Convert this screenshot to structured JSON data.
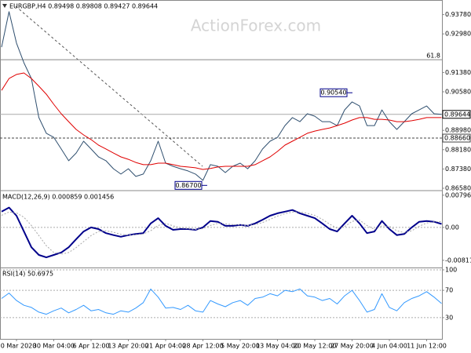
{
  "chart_data": [
    {
      "type": "line",
      "title": "EURGBP,H4 0.89498 0.89808 0.89427 0.89644",
      "watermark": "ActionForex.com",
      "categories": [
        null,
        null,
        "20 Mar 2020",
        null,
        null,
        null,
        null,
        "30 Mar 04:00",
        null,
        null,
        null,
        null,
        "6 Apr 12:00",
        null,
        null,
        null,
        null,
        "13 Apr 20:00",
        null,
        null,
        null,
        null,
        "21 Apr 04:00",
        null,
        null,
        null,
        null,
        "28 Apr 12:00",
        null,
        null,
        null,
        null,
        "5 May 20:00",
        null,
        null,
        null,
        null,
        "13 May 04:00",
        null,
        null,
        null,
        null,
        "20 May 12:00",
        null,
        null,
        null,
        null,
        "27 May 20:00",
        null,
        null,
        null,
        null,
        "4 Jun 04:00",
        null,
        null,
        null,
        null,
        "11 Jun 12:00",
        null,
        null
      ],
      "series": [
        {
          "color": "#2f4f6f",
          "style": "solid",
          "values": [
            0.9243,
            0.939,
            0.926,
            0.9178,
            0.9113,
            0.8951,
            0.8886,
            0.8869,
            0.8821,
            0.8772,
            0.8804,
            0.8853,
            0.8821,
            0.8788,
            0.8772,
            0.8739,
            0.8717,
            0.8739,
            0.8707,
            0.8717,
            0.8772,
            0.8853,
            0.8762,
            0.8749,
            0.8739,
            0.873,
            0.8717,
            0.8691,
            0.8756,
            0.8749,
            0.8723,
            0.8749,
            0.8762,
            0.8739,
            0.8772,
            0.8821,
            0.8853,
            0.8869,
            0.8918,
            0.8951,
            0.8934,
            0.8967,
            0.8957,
            0.8934,
            0.8934,
            0.8918,
            0.8983,
            0.9016,
            0.8999,
            0.8918,
            0.8918,
            0.8983,
            0.8934,
            0.8902,
            0.8934,
            0.8967,
            0.8983,
            0.8999,
            0.8967,
            0.89644
          ]
        },
        {
          "color": "#e00000",
          "style": "solid",
          "values": [
            0.9064,
            0.9113,
            0.913,
            0.9136,
            0.9113,
            0.9081,
            0.9048,
            0.9006,
            0.8967,
            0.8934,
            0.8902,
            0.8879,
            0.886,
            0.8837,
            0.8821,
            0.8804,
            0.8788,
            0.8778,
            0.8765,
            0.8756,
            0.8756,
            0.8762,
            0.8762,
            0.8756,
            0.8749,
            0.8746,
            0.8743,
            0.8736,
            0.874,
            0.8746,
            0.8749,
            0.8749,
            0.8749,
            0.8749,
            0.8756,
            0.8772,
            0.8788,
            0.8811,
            0.8837,
            0.8853,
            0.8869,
            0.8886,
            0.8895,
            0.8902,
            0.8908,
            0.8918,
            0.8928,
            0.8941,
            0.8951,
            0.8951,
            0.8944,
            0.8944,
            0.8941,
            0.8934,
            0.8934,
            0.8938,
            0.8944,
            0.8951,
            0.8951,
            0.8951
          ]
        }
      ],
      "ylim": [
        0.86515,
        0.9432
      ],
      "yticks": [
        {
          "value": 0.9378,
          "label": "0.93780"
        },
        {
          "value": 0.9298,
          "label": "0.92980"
        },
        {
          "value": 0.9138,
          "label": "0.91380"
        },
        {
          "value": 0.9058,
          "label": "0.90580"
        },
        {
          "value": 0.8898,
          "label": "0.88980"
        },
        {
          "value": 0.8818,
          "label": "0.88180"
        },
        {
          "value": 0.8738,
          "label": "0.87380"
        },
        {
          "value": 0.8658,
          "label": "0.86580"
        }
      ],
      "grid": false,
      "fib_level": {
        "name": "61.8",
        "value": 0.9191
      },
      "support_level": {
        "value": 0.8866,
        "label": "0.88660"
      },
      "last_price": 0.89644,
      "annotations": [
        {
          "value": 0.9054,
          "label": "0.90540"
        },
        {
          "value": 0.867,
          "label": "0.86700"
        }
      ]
    },
    {
      "type": "line",
      "title": "MACD(12,26,9) 0.000859 0.001456",
      "series": [
        {
          "color": "#00008b",
          "style": "thick",
          "values": [
            0.0039,
            0.0049,
            0.0029,
            -0.001,
            -0.0049,
            -0.0068,
            -0.0074,
            -0.0068,
            -0.0062,
            -0.0049,
            -0.0029,
            -0.001,
            0,
            -0.0004,
            -0.0014,
            -0.0019,
            -0.0023,
            -0.0019,
            -0.0016,
            -0.0014,
            0.001,
            0.0023,
            0.0004,
            -0.0006,
            -0.0004,
            -0.0004,
            -0.0006,
            0,
            0.0016,
            0.0014,
            0.0004,
            0.0004,
            0.0006,
            0.0004,
            0.001,
            0.0019,
            0.0029,
            0.0035,
            0.0039,
            0.0043,
            0.0035,
            0.0029,
            0.0023,
            0.001,
            -0.0004,
            -0.001,
            0.001,
            0.0029,
            0.001,
            -0.0014,
            -0.001,
            0.0016,
            -0.0004,
            -0.0019,
            -0.0016,
            0,
            0.0014,
            0.0016,
            0.0014,
            0.000859
          ]
        },
        {
          "color": "#a8a8a8",
          "style": "dotted",
          "values": [
            0.003,
            0.0038,
            0.0036,
            0.0025,
            0.0005,
            -0.002,
            -0.0045,
            -0.0062,
            -0.0066,
            -0.0062,
            -0.005,
            -0.0035,
            -0.002,
            -0.001,
            -0.0008,
            -0.0012,
            -0.0017,
            -0.0019,
            -0.0018,
            -0.0016,
            -0.0008,
            0.0005,
            0.001,
            0.0004,
            -0.0001,
            -0.0003,
            -0.0005,
            -0.0003,
            0.0005,
            0.001,
            0.0009,
            0.0007,
            0.0006,
            0.0005,
            0.0007,
            0.0012,
            0.002,
            0.0028,
            0.0034,
            0.0038,
            0.0038,
            0.0035,
            0.003,
            0.002,
            0.0008,
            -0.0002,
            0.0002,
            0.0015,
            0.0018,
            0.0005,
            -0.0005,
            0.0004,
            0.0003,
            -0.0008,
            -0.0013,
            -0.0008,
            0.0003,
            0.0011,
            0.0014,
            0.001456
          ]
        }
      ],
      "ylim": [
        -0.0097,
        0.0089
      ],
      "yticks": [
        0.007964,
        {
          "value": 0,
          "label": "0.00"
        },
        -0.008118
      ],
      "grid": false,
      "zero_line": true
    },
    {
      "type": "line",
      "title": "RSI(14) 50.6975",
      "series": [
        {
          "color": "#3399ff",
          "style": "solid",
          "values": [
            58,
            66,
            55,
            48,
            45,
            38,
            35,
            40,
            44,
            37,
            42,
            48,
            40,
            42,
            37,
            35,
            40,
            38,
            44,
            52,
            72,
            60,
            44,
            45,
            42,
            48,
            40,
            38,
            55,
            50,
            46,
            52,
            55,
            48,
            58,
            60,
            65,
            62,
            70,
            68,
            72,
            62,
            60,
            55,
            58,
            50,
            62,
            70,
            55,
            38,
            42,
            65,
            45,
            40,
            52,
            58,
            62,
            68,
            60,
            50.6975
          ]
        }
      ],
      "ylim": [
        0,
        100
      ],
      "yticks": [
        100,
        70,
        30
      ],
      "grid": true
    }
  ]
}
